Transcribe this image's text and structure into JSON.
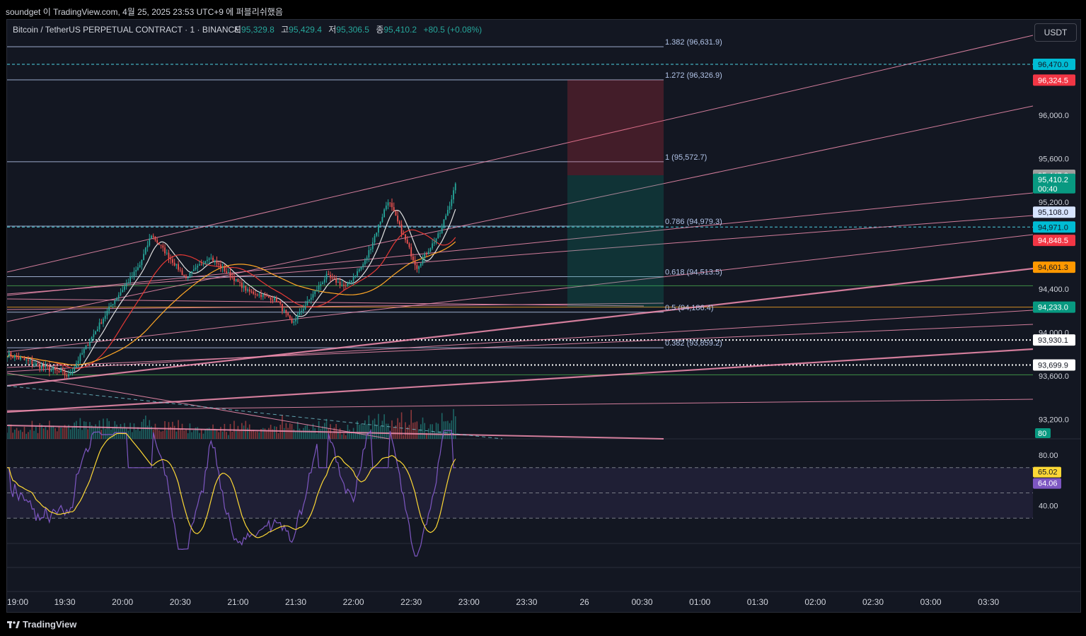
{
  "window": {
    "title": "soundget 이 TradingView.com, 4월 25, 2025 23:53 UTC+9 에 퍼블리쉬했음"
  },
  "symbol": {
    "name": "Bitcoin / TetherUS PERPETUAL CONTRACT · 1 · BINANCE",
    "o_label": "시",
    "o_value": "95,329.8",
    "h_label": "고",
    "h_value": "95,429.4",
    "l_label": "저",
    "l_value": "95,306.5",
    "c_label": "종",
    "c_value": "95,410.2",
    "change": "+80.5 (+0.08%)"
  },
  "currency_button": "USDT",
  "brand": "TradingView",
  "colors": {
    "background": "#131722",
    "up": "#26a69a",
    "down": "#ef5350",
    "fib_line": "#b2c4e8",
    "trend_pink": "#f48fb1",
    "ma_orange": "#ffa726",
    "ma_red": "#e53935",
    "ma_white": "#e0e0e0",
    "rsi": "#7e57c2",
    "rsi_ma": "#fdd835"
  },
  "chart_data": {
    "type": "candlestick",
    "x_ticks": [
      "19:00",
      "19:30",
      "20:00",
      "20:30",
      "21:00",
      "21:30",
      "22:00",
      "22:30",
      "23:00",
      "23:30",
      "26",
      "00:30",
      "01:00",
      "01:30",
      "02:00",
      "02:30",
      "03:00",
      "03:30"
    ],
    "y_ticks": [
      "96,000.0",
      "95,600.0",
      "95,200.0",
      "94,400.0",
      "94,000.0",
      "93,600.0",
      "93,200.0"
    ],
    "ylim": [
      93020,
      96880
    ],
    "fib_levels": [
      {
        "label": "1.382 (96,631.9)",
        "value": 96631.9
      },
      {
        "label": "1.272 (96,326.9)",
        "value": 96326.9
      },
      {
        "label": "1 (95,572.7)",
        "value": 95572.7
      },
      {
        "label": "0.786 (94,979.3)",
        "value": 94979.3
      },
      {
        "label": "0.618 (94,513.5)",
        "value": 94513.5
      },
      {
        "label": "0.5 (94,186.4)",
        "value": 94186.4
      },
      {
        "label": "0.382 (93,859.2)",
        "value": 93859.2
      }
    ],
    "price_labels": [
      {
        "text": "96,470.0",
        "value": 96470.0,
        "color": "#00bcd4",
        "text_color": "#131722"
      },
      {
        "text": "96,324.5",
        "value": 96324.5,
        "color": "#f23645",
        "text_color": "#ffffff"
      },
      {
        "text": "95,447.8",
        "value": 95447.8,
        "color": "#9e9e9e",
        "text_color": "#ffffff"
      },
      {
        "text": "95,410.2",
        "value": 95410.2,
        "color": "#089981",
        "text_color": "#ffffff",
        "sub": "00:40"
      },
      {
        "text": "95,108.0",
        "value": 95108.0,
        "color": "#d6e4ff",
        "text_color": "#131722"
      },
      {
        "text": "94,971.0",
        "value": 94971.0,
        "color": "#00bcd4",
        "text_color": "#131722"
      },
      {
        "text": "94,848.5",
        "value": 94848.5,
        "color": "#f23645",
        "text_color": "#ffffff"
      },
      {
        "text": "94,601.3",
        "value": 94601.3,
        "color": "#ff9800",
        "text_color": "#131722"
      },
      {
        "text": "94,233.0",
        "value": 94233.0,
        "color": "#089981",
        "text_color": "#ffffff"
      },
      {
        "text": "93,930.1",
        "value": 93930.1,
        "color": "#ffffff",
        "text_color": "#131722"
      },
      {
        "text": "93,699.9",
        "value": 93699.9,
        "color": "#ffffff",
        "text_color": "#131722"
      }
    ],
    "dotted_levels": [
      93930.1,
      93699.9
    ],
    "dashed_levels": [
      96470.0,
      94971.0
    ],
    "horizontal_levels": [
      {
        "value": 94233.0,
        "color": "#ffa726"
      },
      {
        "value": 94430,
        "color": "#4caf50"
      },
      {
        "value": 93610,
        "color": "#4caf50"
      }
    ],
    "position_tool": {
      "entry": 95447.8,
      "stop": 96326.9,
      "target": 94233.0
    },
    "volume_label": "80",
    "rsi": {
      "ticks": [
        "80.00",
        "40.00"
      ],
      "upper": 70,
      "middle": 50,
      "lower": 30,
      "value_label": "64.06",
      "ma_label": "65.02"
    },
    "segments": [
      {
        "start": 93800,
        "end": 93600,
        "n": 32,
        "vol": 0.0045
      },
      {
        "start": 93600,
        "end": 94250,
        "n": 22,
        "vol": 0.0035
      },
      {
        "start": 94250,
        "end": 94620,
        "n": 15,
        "vol": 0.003
      },
      {
        "start": 94620,
        "end": 94900,
        "n": 6,
        "vol": 0.004
      },
      {
        "start": 94900,
        "end": 94500,
        "n": 18,
        "vol": 0.003
      },
      {
        "start": 94500,
        "end": 94700,
        "n": 12,
        "vol": 0.0028
      },
      {
        "start": 94700,
        "end": 94380,
        "n": 20,
        "vol": 0.0028
      },
      {
        "start": 94380,
        "end": 94300,
        "n": 15,
        "vol": 0.0028
      },
      {
        "start": 94300,
        "end": 94080,
        "n": 8,
        "vol": 0.0035
      },
      {
        "start": 94080,
        "end": 94520,
        "n": 18,
        "vol": 0.0028
      },
      {
        "start": 94520,
        "end": 94420,
        "n": 10,
        "vol": 0.003
      },
      {
        "start": 94420,
        "end": 94650,
        "n": 10,
        "vol": 0.0028
      },
      {
        "start": 94650,
        "end": 95220,
        "n": 12,
        "vol": 0.004
      },
      {
        "start": 95220,
        "end": 94600,
        "n": 15,
        "vol": 0.004
      },
      {
        "start": 94600,
        "end": 94920,
        "n": 12,
        "vol": 0.003
      },
      {
        "start": 94920,
        "end": 95400,
        "n": 9,
        "vol": 0.004
      }
    ]
  }
}
